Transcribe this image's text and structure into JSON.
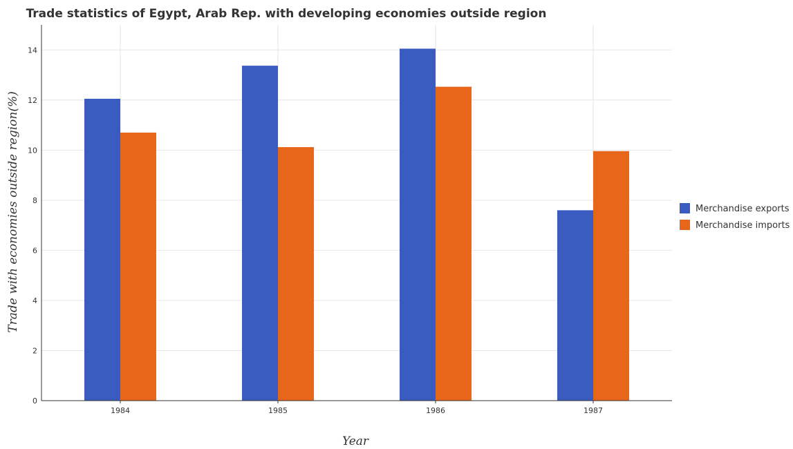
{
  "chart_data": {
    "type": "bar",
    "title": "Trade statistics of Egypt, Arab Rep. with developing economies outside region",
    "xlabel": "Year",
    "ylabel": "Trade with economies outside region(%)",
    "categories": [
      "1984",
      "1985",
      "1986",
      "1987"
    ],
    "series": [
      {
        "name": "Merchandise exports",
        "values": [
          12.05,
          13.37,
          14.05,
          7.6
        ],
        "color": "#3a5bbf"
      },
      {
        "name": "Merchandise imports",
        "values": [
          10.7,
          10.12,
          12.53,
          9.96
        ],
        "color": "#e8661a"
      }
    ],
    "ylim": [
      0,
      15
    ],
    "yticks": [
      0,
      2,
      4,
      6,
      8,
      10,
      12,
      14
    ],
    "grid": true,
    "legend_position": "right"
  }
}
